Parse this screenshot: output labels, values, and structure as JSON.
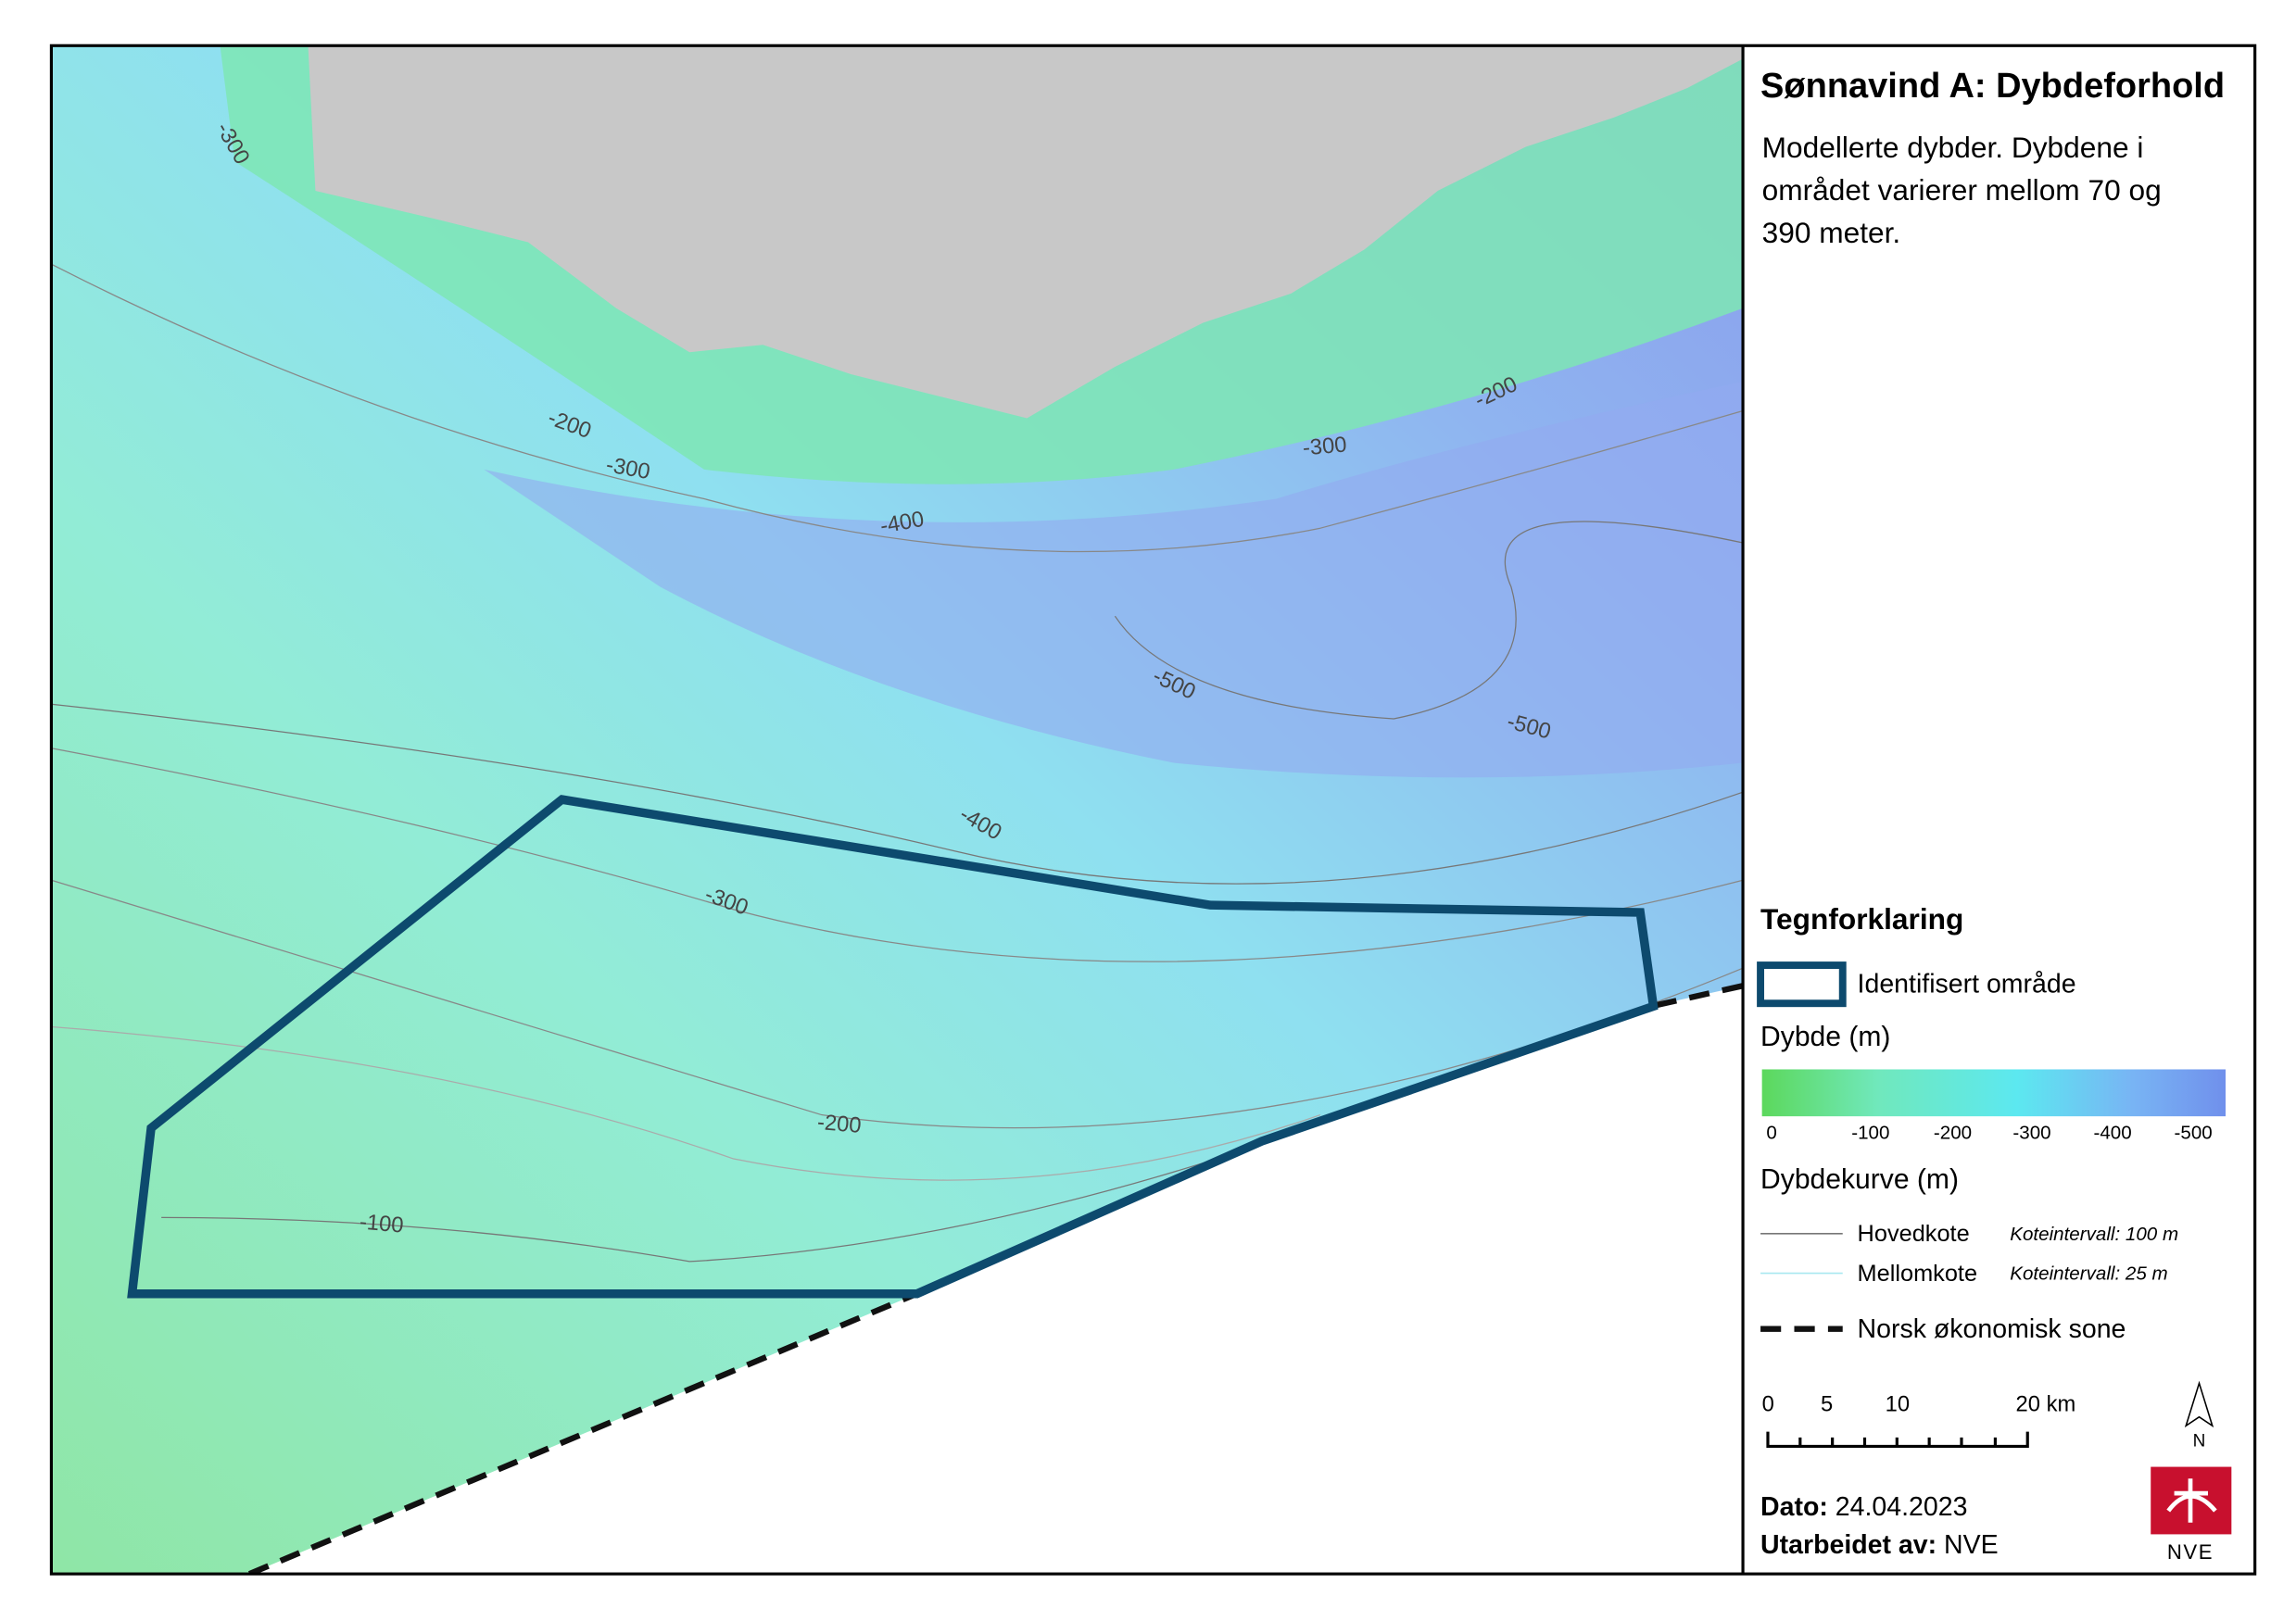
{
  "title": "Sønnavind A: Dybdeforhold",
  "description_lines": [
    "Modellerte dybder. Dybdene i",
    "området varierer mellom 70 og",
    "390 meter."
  ],
  "contour_labels": [
    "-300",
    "-200",
    "-300",
    "-400",
    "-500",
    "-500",
    "-400",
    "-300",
    "-200",
    "-100",
    "-200",
    "-300"
  ],
  "legend": {
    "title": "Tegnforklaring",
    "area": "Identifisert område",
    "depth_title": "Dybde (m)",
    "depth_ticks": [
      "0",
      "-100",
      "-200",
      "-300",
      "-400",
      "-500"
    ],
    "contour_title": "Dybdekurve (m)",
    "main": "Hovedkote",
    "main_interval": "Koteintervall: 100 m",
    "minor": "Mellomkote",
    "minor_interval": "Koteintervall: 25 m",
    "eez": "Norsk økonomisk sone"
  },
  "scale_labels": [
    "0",
    "5",
    "10",
    "20 km"
  ],
  "north": "N",
  "date_label": "Dato:",
  "date": "24.04.2023",
  "author_label": "Utarbeidet av:",
  "author": "NVE",
  "logo": "NVE"
}
